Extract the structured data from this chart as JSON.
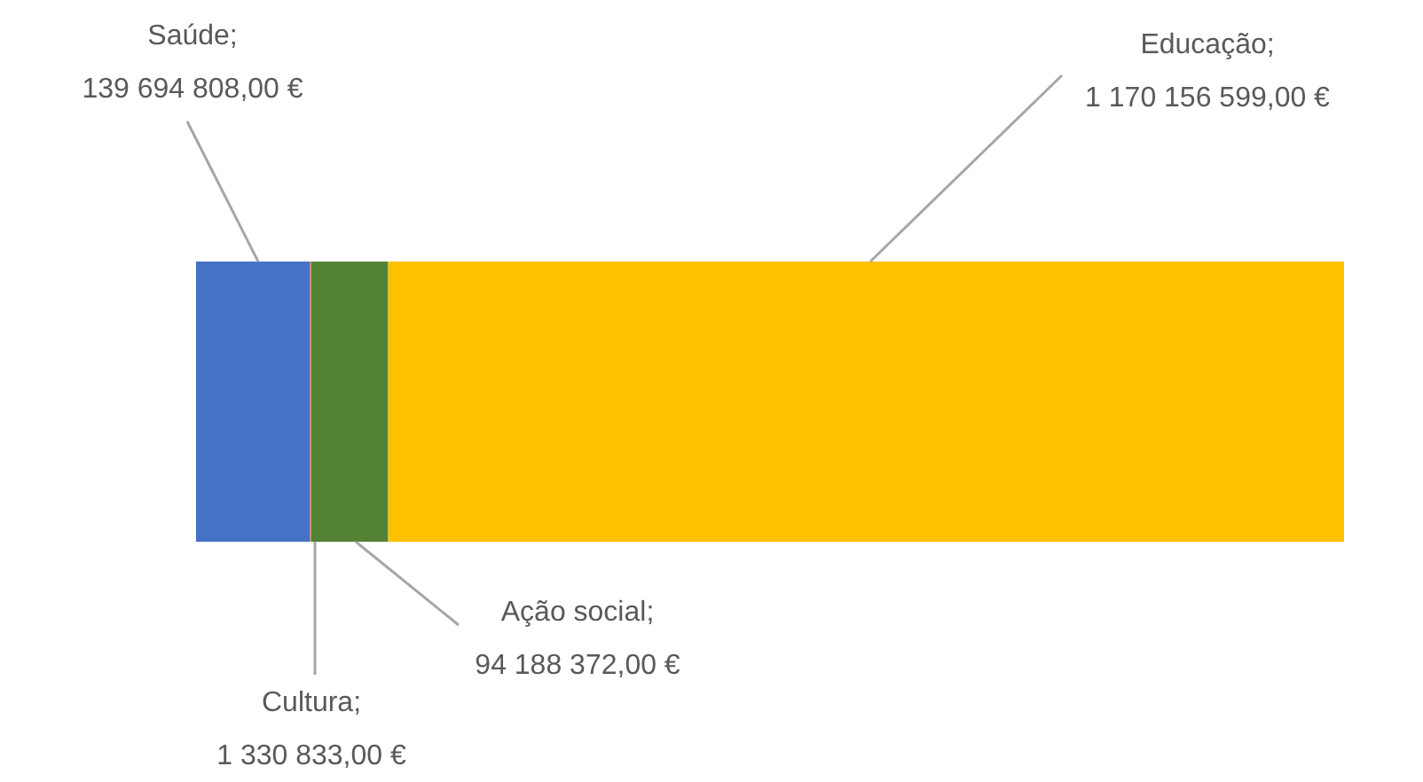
{
  "chart_data": {
    "type": "bar",
    "orientation": "horizontal",
    "stacked": true,
    "categories": [
      null
    ],
    "series": [
      {
        "color": "#4472c4",
        "values": [
          139694808
        ],
        "value_labels": [
          "Saúde;\n139 694 808,00 €"
        ]
      },
      {
        "color": "#ed7d31",
        "values": [
          1330833
        ],
        "value_labels": [
          "Cultura;\n1 330 833,00 €"
        ]
      },
      {
        "color": "#548235",
        "values": [
          94188372
        ],
        "value_labels": [
          "Ação social;\n94 188 372,00 €"
        ]
      },
      {
        "color": "#ffc000",
        "values": [
          1170156599
        ],
        "value_labels": [
          "Educação;\n1 170 156 599,00 €"
        ]
      }
    ]
  }
}
